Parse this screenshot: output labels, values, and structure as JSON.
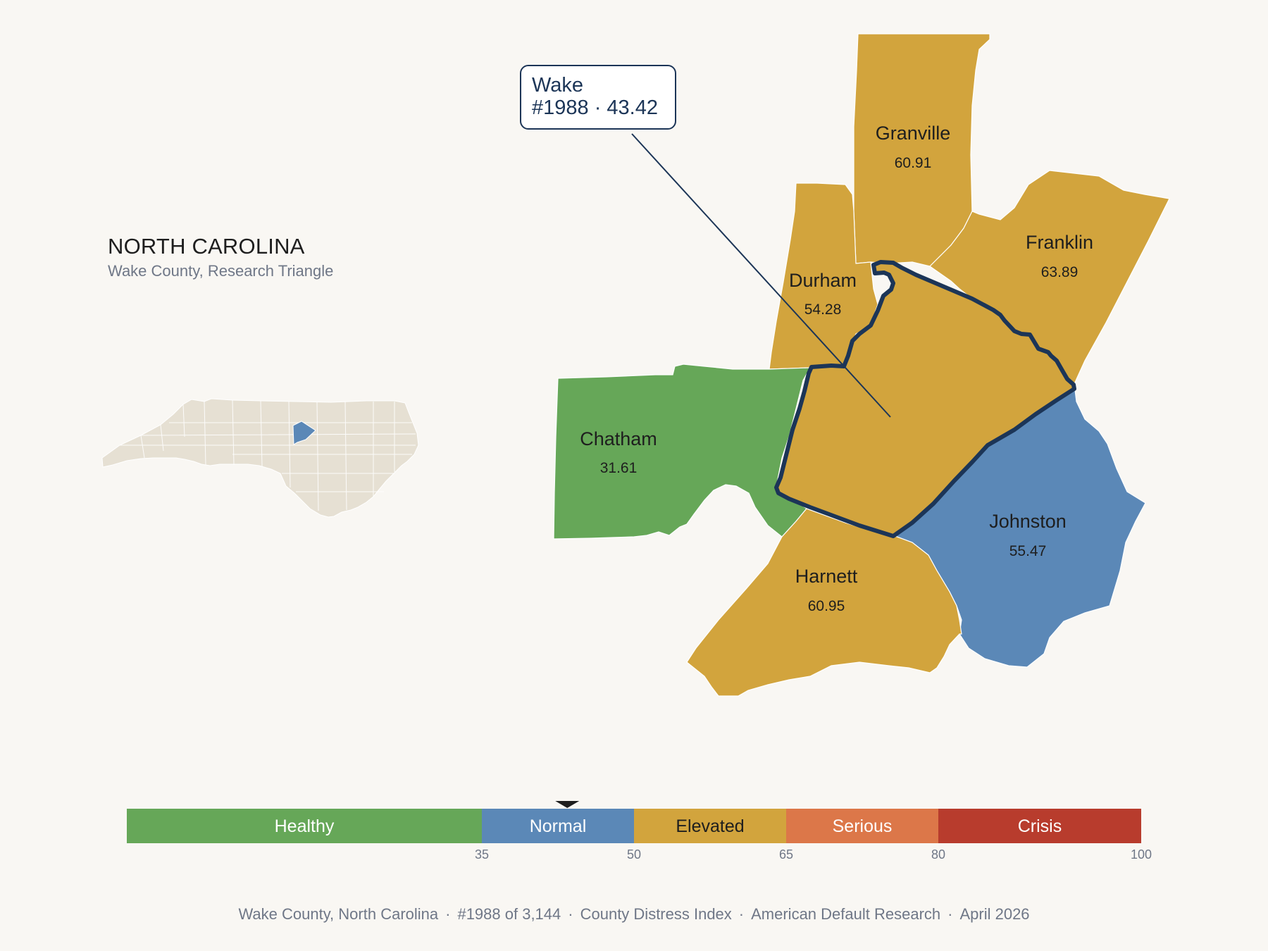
{
  "state": {
    "title": "NORTH CAROLINA",
    "subtitle": "Wake County, Research Triangle"
  },
  "callout": {
    "line1": "Wake",
    "line2": "#1988 · 43.42"
  },
  "colors": {
    "background": "#f9f7f3",
    "healthy": "#66a758",
    "normal": "#5b88b7",
    "elevated": "#d2a43d",
    "serious": "#dc7749",
    "crisis": "#b83c2d",
    "highlight_border": "#1c3557",
    "inset_land": "#e6e0d3"
  },
  "counties": [
    {
      "name": "Granville",
      "value": "60.91",
      "band": "elevated"
    },
    {
      "name": "Franklin",
      "value": "63.89",
      "band": "elevated"
    },
    {
      "name": "Durham",
      "value": "54.28",
      "band": "elevated"
    },
    {
      "name": "Chatham",
      "value": "31.61",
      "band": "healthy"
    },
    {
      "name": "Wake",
      "value": "43.42",
      "band": "normal",
      "highlighted": true
    },
    {
      "name": "Johnston",
      "value": "55.47",
      "band": "elevated"
    },
    {
      "name": "Harnett",
      "value": "60.95",
      "band": "elevated"
    }
  ],
  "legend": {
    "bands": [
      {
        "label": "Healthy",
        "min": 0,
        "max": 35,
        "color": "#66a758"
      },
      {
        "label": "Normal",
        "min": 35,
        "max": 50,
        "color": "#5b88b7"
      },
      {
        "label": "Elevated",
        "min": 50,
        "max": 65,
        "color": "#d2a43d"
      },
      {
        "label": "Serious",
        "min": 65,
        "max": 80,
        "color": "#dc7749"
      },
      {
        "label": "Crisis",
        "min": 80,
        "max": 100,
        "color": "#b83c2d"
      }
    ],
    "ticks": [
      "35",
      "50",
      "65",
      "80",
      "100"
    ],
    "marker_value": 43.42
  },
  "footer": {
    "parts": [
      "Wake County, North Carolina",
      "#1988 of 3,144",
      "County Distress Index",
      "American Default Research",
      "April 2026"
    ]
  }
}
